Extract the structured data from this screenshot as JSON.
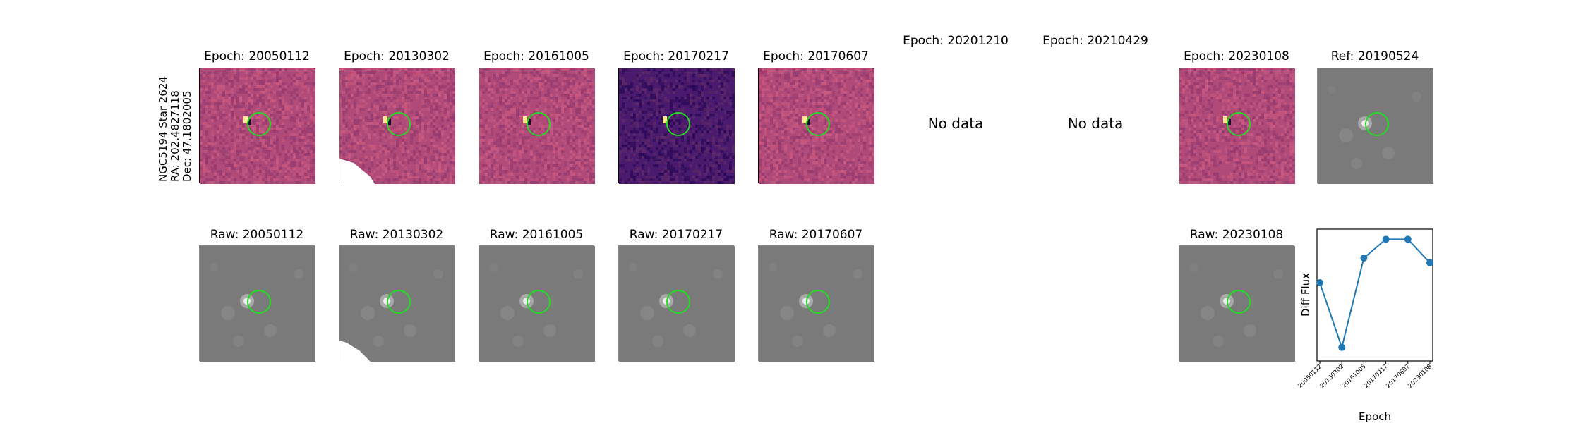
{
  "star_label": {
    "line1": "NGC5194 Star 2624",
    "line2": "RA: 202.4827118",
    "line3": "Dec: 47.1802005"
  },
  "top_row": [
    {
      "title": "Epoch: 20050112",
      "kind": "diff"
    },
    {
      "title": "Epoch: 20130302",
      "kind": "diff"
    },
    {
      "title": "Epoch: 20161005",
      "kind": "diff"
    },
    {
      "title": "Epoch: 20170217",
      "kind": "diff"
    },
    {
      "title": "Epoch: 20170607",
      "kind": "diff"
    },
    {
      "title": "Epoch: 20201210",
      "kind": "nodata",
      "message": "No data"
    },
    {
      "title": "Epoch: 20210429",
      "kind": "nodata",
      "message": "No data"
    },
    {
      "title": "Epoch: 20230108",
      "kind": "diff"
    },
    {
      "title": "Ref: 20190524",
      "kind": "raw"
    }
  ],
  "bottom_row": [
    {
      "title": "Raw: 20050112"
    },
    {
      "title": "Raw: 20130302"
    },
    {
      "title": "Raw: 20161005"
    },
    {
      "title": "Raw: 20170217"
    },
    {
      "title": "Raw: 20170607"
    },
    {
      "title": "Raw: 20230108"
    }
  ],
  "colors": {
    "circle": "#22dd22",
    "line": "#1f77b4",
    "magma_mid": "#b04a78",
    "magma_dark": "#4a1a6e",
    "raw_bg": "#7a7a7a"
  },
  "chart_data": {
    "type": "line",
    "x": [
      "20050112",
      "20130302",
      "20161005",
      "20170217",
      "20170607",
      "20230108"
    ],
    "series": [
      {
        "values": [
          0.63,
          0.08,
          0.84,
          1.0,
          1.0,
          0.8
        ]
      }
    ],
    "xlabel": "Epoch",
    "ylabel": "Diff Flux",
    "ylim": [
      0,
      1.05
    ],
    "grid": false
  }
}
